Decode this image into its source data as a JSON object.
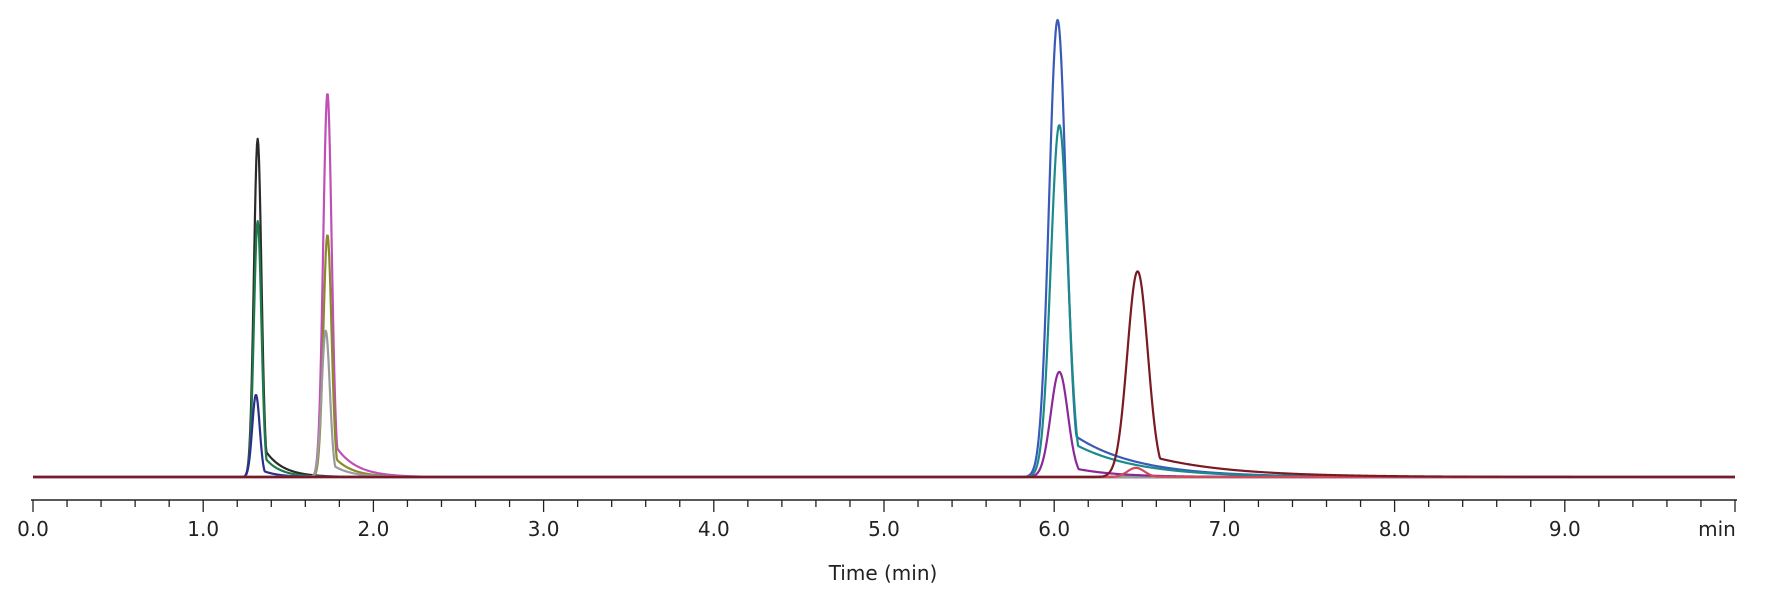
{
  "chart_data": {
    "type": "line",
    "title": "",
    "xlabel": "Time (min)",
    "ylabel": "",
    "xlim": [
      0.0,
      10.0
    ],
    "ylim": [
      0,
      1.0
    ],
    "grid": false,
    "legend": "none",
    "x_ticks": [
      0.0,
      1.0,
      2.0,
      3.0,
      4.0,
      5.0,
      6.0,
      7.0,
      8.0,
      9.0
    ],
    "x_tick_labels": [
      "0.0",
      "1.0",
      "2.0",
      "3.0",
      "4.0",
      "5.0",
      "6.0",
      "7.0",
      "8.0",
      "9.0"
    ],
    "x_unit_label": "min",
    "minor_tick_step": 0.2,
    "series": [
      {
        "color": "#2a2a2a",
        "peaks": [
          {
            "t": 1.32,
            "h": 0.74,
            "width": 0.022,
            "tail": 0.035
          }
        ]
      },
      {
        "color": "#1f7a4a",
        "peaks": [
          {
            "t": 1.32,
            "h": 0.56,
            "width": 0.022,
            "tail": 0.03
          }
        ]
      },
      {
        "color": "#2b2f8f",
        "peaks": [
          {
            "t": 1.31,
            "h": 0.18,
            "width": 0.022,
            "tail": 0.03
          }
        ]
      },
      {
        "color": "#c24fb8",
        "peaks": [
          {
            "t": 1.73,
            "h": 0.84,
            "width": 0.025,
            "tail": 0.04
          }
        ]
      },
      {
        "color": "#8a8a2a",
        "peaks": [
          {
            "t": 1.73,
            "h": 0.53,
            "width": 0.024,
            "tail": 0.035
          }
        ]
      },
      {
        "color": "#9a9a9a",
        "peaks": [
          {
            "t": 1.72,
            "h": 0.32,
            "width": 0.024,
            "tail": 0.035
          }
        ]
      },
      {
        "color": "#3a5ab8",
        "peaks": [
          {
            "t": 6.02,
            "h": 1.0,
            "width": 0.05,
            "tail": 0.12
          }
        ]
      },
      {
        "color": "#1a8a8a",
        "peaks": [
          {
            "t": 6.03,
            "h": 0.77,
            "width": 0.05,
            "tail": 0.12
          }
        ]
      },
      {
        "color": "#8a2a9a",
        "peaks": [
          {
            "t": 6.03,
            "h": 0.23,
            "width": 0.05,
            "tail": 0.08
          }
        ]
      },
      {
        "color": "#d04a5a",
        "peaks": [
          {
            "t": 6.48,
            "h": 0.02,
            "width": 0.05,
            "tail": 0.05
          }
        ]
      },
      {
        "color": "#7a1a22",
        "peaks": [
          {
            "t": 6.49,
            "h": 0.45,
            "width": 0.06,
            "tail": 0.15
          }
        ]
      }
    ]
  }
}
